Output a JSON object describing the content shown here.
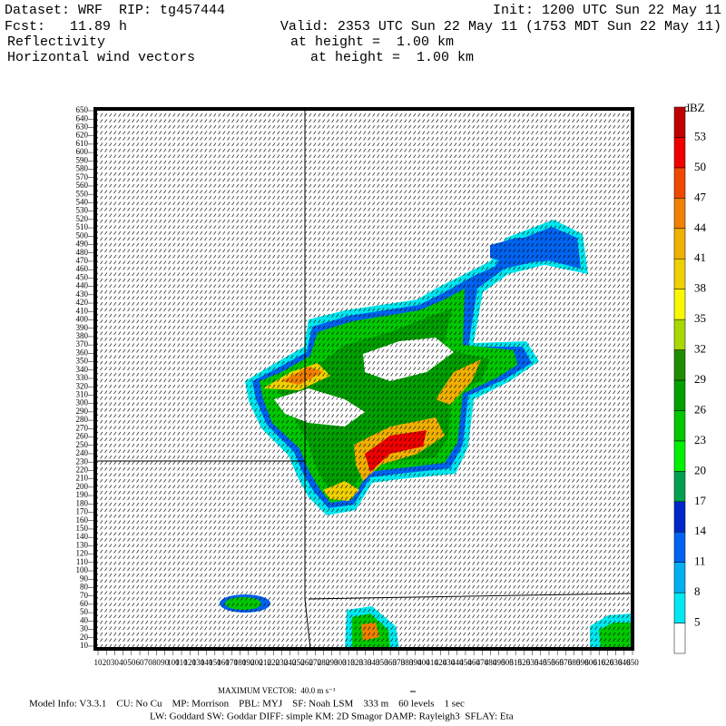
{
  "header": {
    "dataset": "Dataset: WRF  RIP: tg457444",
    "init": "Init: 1200 UTC Sun 22 May 11",
    "fcst": "Fcst:   11.89 h",
    "valid": "Valid: 2353 UTC Sun 22 May 11 (1753 MDT Sun 22 May 11)",
    "field1": "Reflectivity",
    "field1_height": "at height =  1.00 km",
    "field2": "Horizontal wind vectors",
    "field2_height": "at height =  1.00 km"
  },
  "chart_data": {
    "type": "map",
    "xticks": [
      10,
      20,
      30,
      40,
      50,
      60,
      70,
      80,
      90,
      100,
      110,
      120,
      130,
      140,
      150,
      160,
      170,
      180,
      190,
      200,
      210,
      220,
      230,
      240,
      250,
      260,
      270,
      280,
      290,
      300,
      310,
      320,
      330,
      340,
      350,
      360,
      370,
      380,
      390,
      400,
      410,
      420,
      430,
      440,
      450,
      460,
      470,
      480,
      490,
      500,
      510,
      520,
      530,
      540,
      550,
      560,
      570,
      580,
      590,
      600,
      610,
      620,
      630,
      640,
      650
    ],
    "yticks": [
      10,
      20,
      30,
      40,
      50,
      60,
      70,
      80,
      90,
      100,
      110,
      120,
      130,
      140,
      150,
      160,
      170,
      180,
      190,
      200,
      210,
      220,
      230,
      240,
      250,
      260,
      270,
      280,
      290,
      300,
      310,
      320,
      330,
      340,
      350,
      360,
      370,
      380,
      390,
      400,
      410,
      420,
      430,
      440,
      450,
      460,
      470,
      480,
      490,
      500,
      510,
      520,
      530,
      540,
      550,
      560,
      570,
      580,
      590,
      600,
      610,
      620,
      630,
      640,
      650
    ],
    "colorbar": {
      "unit": "dBZ",
      "levels": [
        5,
        8,
        11,
        14,
        17,
        20,
        23,
        26,
        29,
        32,
        35,
        38,
        41,
        44,
        47,
        50,
        53
      ],
      "colors": [
        "#ffffff",
        "#00e8f0",
        "#00b0f0",
        "#0064f0",
        "#0028c8",
        "#00a050",
        "#00f000",
        "#00c800",
        "#00a000",
        "#208c00",
        "#a8d800",
        "#f8f800",
        "#f0d000",
        "#f0b000",
        "#f08000",
        "#f04800",
        "#f00000",
        "#c00000"
      ]
    }
  },
  "footer": {
    "max_vector": "MAXIMUM VECTOR:  40.0 m s⁻¹",
    "model_info": "Model Info: V3.3.1    CU: No Cu    MP: Morrison    PBL: MYJ    SF: Noah LSM    333 m    60 levels    1 sec",
    "physics": "LW: Goddard SW: Goddar DIFF: simple KM: 2D Smagor DAMP: Rayleigh3  SFLAY: Eta"
  }
}
